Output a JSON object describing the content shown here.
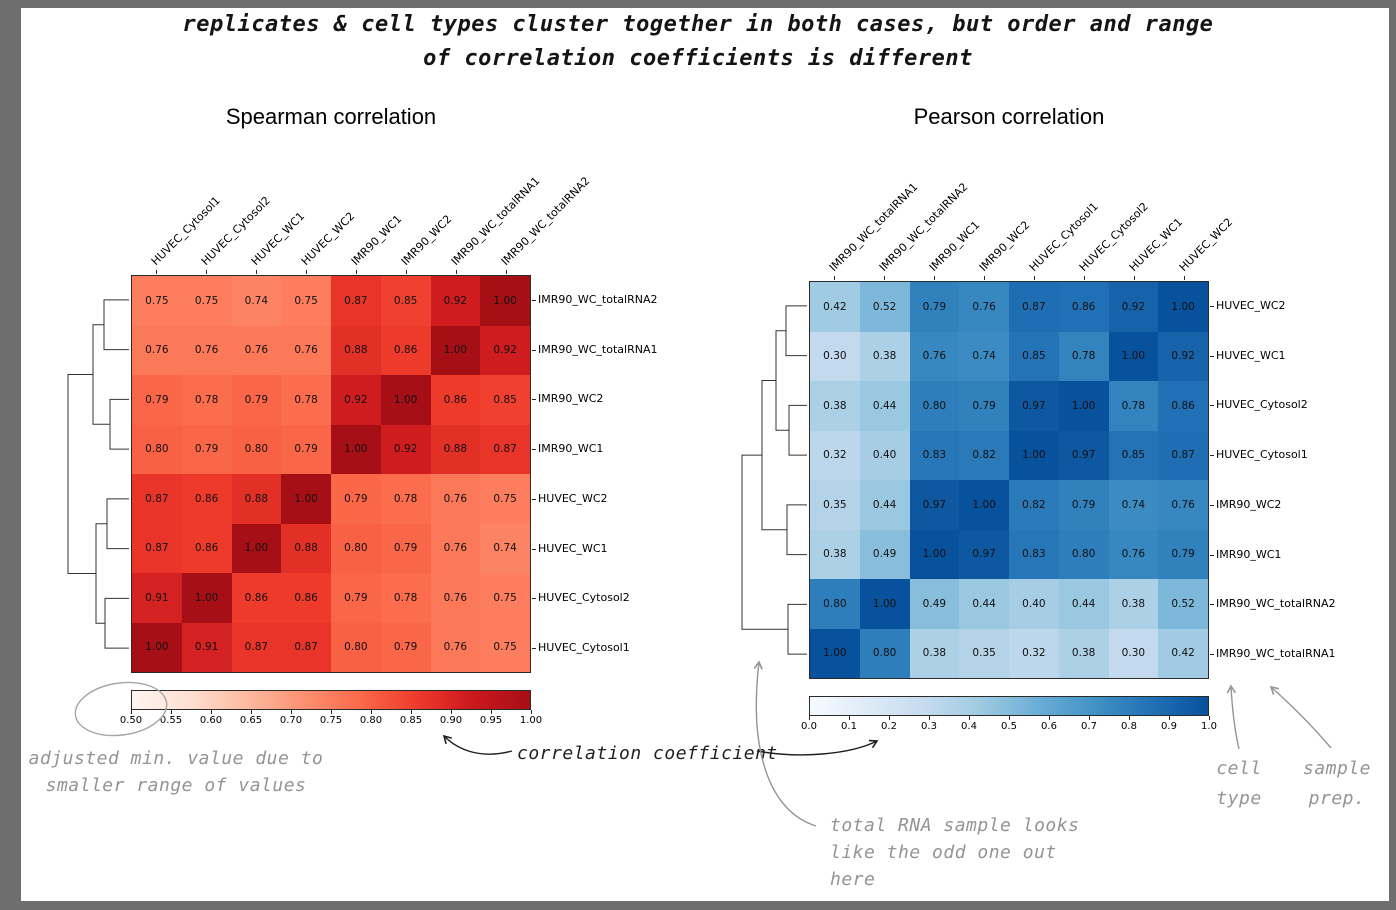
{
  "title": {
    "line1": "replicates & cell types cluster together in both cases, but order and range",
    "line2": "of correlation coefficients is different"
  },
  "chart_data": [
    {
      "type": "heatmap",
      "title": "Spearman correlation",
      "colormap": "Reds",
      "vmin": 0.5,
      "vmax": 1.0,
      "legend_position": "bottom",
      "columns": [
        "HUVEC_Cytosol1",
        "HUVEC_Cytosol2",
        "HUVEC_WC1",
        "HUVEC_WC2",
        "IMR90_WC1",
        "IMR90_WC2",
        "IMR90_WC_totalRNA1",
        "IMR90_WC_totalRNA2"
      ],
      "rows": [
        "IMR90_WC_totalRNA2",
        "IMR90_WC_totalRNA1",
        "IMR90_WC2",
        "IMR90_WC1",
        "HUVEC_WC2",
        "HUVEC_WC1",
        "HUVEC_Cytosol2",
        "HUVEC_Cytosol1"
      ],
      "values": [
        [
          0.75,
          0.75,
          0.74,
          0.75,
          0.87,
          0.85,
          0.92,
          1.0
        ],
        [
          0.76,
          0.76,
          0.76,
          0.76,
          0.88,
          0.86,
          1.0,
          0.92
        ],
        [
          0.79,
          0.78,
          0.79,
          0.78,
          0.92,
          1.0,
          0.86,
          0.85
        ],
        [
          0.8,
          0.79,
          0.8,
          0.79,
          1.0,
          0.92,
          0.88,
          0.87
        ],
        [
          0.87,
          0.86,
          0.88,
          1.0,
          0.79,
          0.78,
          0.76,
          0.75
        ],
        [
          0.87,
          0.86,
          1.0,
          0.88,
          0.8,
          0.79,
          0.76,
          0.74
        ],
        [
          0.91,
          1.0,
          0.86,
          0.86,
          0.79,
          0.78,
          0.76,
          0.75
        ],
        [
          1.0,
          0.91,
          0.87,
          0.87,
          0.8,
          0.79,
          0.76,
          0.75
        ]
      ],
      "colorbar_ticks": [
        "0.50",
        "0.55",
        "0.60",
        "0.65",
        "0.70",
        "0.75",
        "0.80",
        "0.85",
        "0.90",
        "0.95",
        "1.00"
      ]
    },
    {
      "type": "heatmap",
      "title": "Pearson correlation",
      "colormap": "Blues",
      "vmin": 0.0,
      "vmax": 1.0,
      "legend_position": "bottom",
      "columns": [
        "IMR90_WC_totalRNA1",
        "IMR90_WC_totalRNA2",
        "IMR90_WC1",
        "IMR90_WC2",
        "HUVEC_Cytosol1",
        "HUVEC_Cytosol2",
        "HUVEC_WC1",
        "HUVEC_WC2"
      ],
      "rows": [
        "HUVEC_WC2",
        "HUVEC_WC1",
        "HUVEC_Cytosol2",
        "HUVEC_Cytosol1",
        "IMR90_WC2",
        "IMR90_WC1",
        "IMR90_WC_totalRNA2",
        "IMR90_WC_totalRNA1"
      ],
      "values": [
        [
          0.42,
          0.52,
          0.79,
          0.76,
          0.87,
          0.86,
          0.92,
          1.0
        ],
        [
          0.3,
          0.38,
          0.76,
          0.74,
          0.85,
          0.78,
          1.0,
          0.92
        ],
        [
          0.38,
          0.44,
          0.8,
          0.79,
          0.97,
          1.0,
          0.78,
          0.86
        ],
        [
          0.32,
          0.4,
          0.83,
          0.82,
          1.0,
          0.97,
          0.85,
          0.87
        ],
        [
          0.35,
          0.44,
          0.97,
          1.0,
          0.82,
          0.79,
          0.74,
          0.76
        ],
        [
          0.38,
          0.49,
          1.0,
          0.97,
          0.83,
          0.8,
          0.76,
          0.79
        ],
        [
          0.8,
          1.0,
          0.49,
          0.44,
          0.4,
          0.44,
          0.38,
          0.52
        ],
        [
          1.0,
          0.8,
          0.38,
          0.35,
          0.32,
          0.38,
          0.3,
          0.42
        ]
      ],
      "colorbar_ticks": [
        "0.0",
        "0.1",
        "0.2",
        "0.3",
        "0.4",
        "0.5",
        "0.6",
        "0.7",
        "0.8",
        "0.9",
        "1.0"
      ]
    }
  ],
  "annotations": {
    "adjusted_min": [
      "adjusted min. value due to",
      "smaller range of values"
    ],
    "correlation_coefficient": "correlation coefficient",
    "total_rna": [
      "total RNA sample looks",
      "like the odd one out",
      "here"
    ],
    "cell_type": [
      "cell",
      "type"
    ],
    "sample_prep": [
      "sample",
      "prep."
    ]
  },
  "colors": {
    "frame": "#6e6e6e",
    "annotation_gray": "#949494",
    "annotation_dark": "#1f1f1f"
  }
}
